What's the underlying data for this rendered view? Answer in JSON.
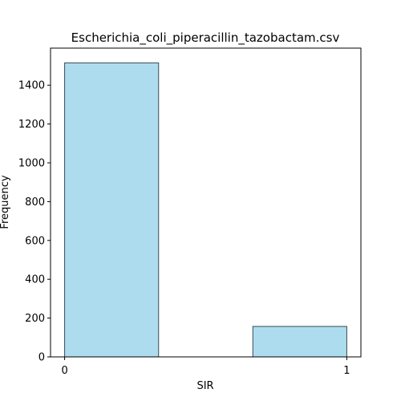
{
  "chart_data": {
    "type": "bar",
    "title": "Escherichia_coli_piperacillin_tazobactam.csv",
    "xlabel": "SIR",
    "ylabel": "Frequency",
    "bins": [
      {
        "x0": 0.0,
        "x1": 0.333,
        "value": 1515
      },
      {
        "x0": 0.667,
        "x1": 1.0,
        "value": 157
      }
    ],
    "xlim": [
      -0.05,
      1.05
    ],
    "ylim": [
      0,
      1591
    ],
    "xticks": [
      0,
      1
    ],
    "xtick_labels": [
      "0",
      "1"
    ],
    "yticks": [
      0,
      200,
      400,
      600,
      800,
      1000,
      1200,
      1400
    ],
    "ytick_labels": [
      "0",
      "200",
      "400",
      "600",
      "800",
      "1000",
      "1200",
      "1400"
    ],
    "bar_color": "#ADDCEF",
    "bar_edge_color": "#3A4A50",
    "grid": false,
    "legend": "none"
  }
}
